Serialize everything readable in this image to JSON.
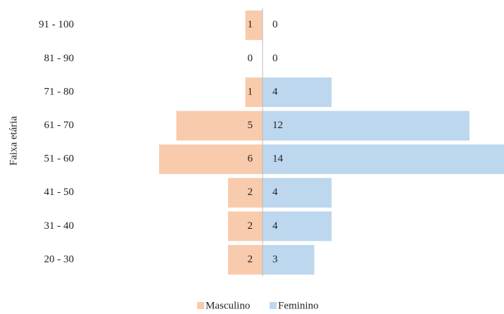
{
  "chart_data": {
    "type": "pyramid",
    "y_axis_label": "Faixa etária",
    "categories": [
      "91 - 100",
      "81 - 90",
      "71 - 80",
      "61 - 70",
      "51 - 60",
      "41 - 50",
      "31 - 40",
      "20 - 30"
    ],
    "series": [
      {
        "name": "Masculino",
        "color": "#f8cbad",
        "values": [
          1,
          0,
          1,
          5,
          6,
          2,
          2,
          2
        ]
      },
      {
        "name": "Feminino",
        "color": "#bdd7ee",
        "values": [
          0,
          0,
          4,
          12,
          14,
          4,
          4,
          3
        ]
      }
    ]
  }
}
